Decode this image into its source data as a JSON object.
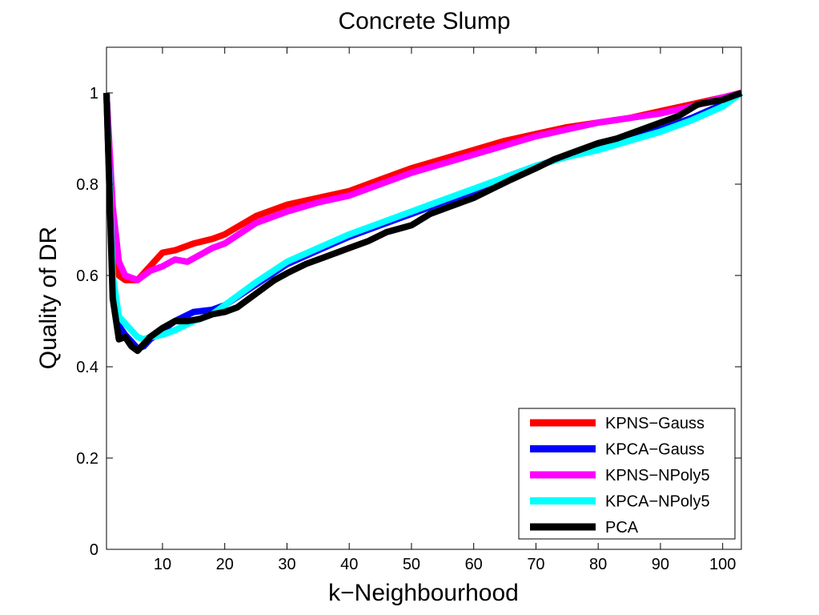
{
  "chart_data": {
    "type": "line",
    "title": "Concrete Slump",
    "xlabel": "k−Neighbourhood",
    "ylabel": "Quality of DR",
    "xlim": [
      1,
      103
    ],
    "ylim": [
      0,
      1.1
    ],
    "xticks": [
      10,
      20,
      30,
      40,
      50,
      60,
      70,
      80,
      90,
      100
    ],
    "yticks": [
      0,
      0.2,
      0.4,
      0.6,
      0.8,
      1
    ],
    "ytick_labels": [
      "0",
      "0.2",
      "0.4",
      "0.6",
      "0.8",
      "1"
    ],
    "grid": false,
    "legend_position": "bottom-right",
    "series": [
      {
        "name": "KPNS−Gauss",
        "color": "#ff0000",
        "x": [
          1,
          2,
          3,
          4,
          5,
          6,
          8,
          10,
          12,
          15,
          18,
          20,
          25,
          30,
          35,
          40,
          45,
          50,
          55,
          60,
          65,
          70,
          75,
          80,
          85,
          90,
          95,
          100,
          103
        ],
        "y": [
          1.0,
          0.72,
          0.6,
          0.59,
          0.59,
          0.59,
          0.62,
          0.65,
          0.655,
          0.67,
          0.68,
          0.69,
          0.73,
          0.755,
          0.77,
          0.785,
          0.81,
          0.835,
          0.855,
          0.875,
          0.895,
          0.91,
          0.925,
          0.935,
          0.945,
          0.96,
          0.975,
          0.99,
          1.0
        ]
      },
      {
        "name": "KPCA−Gauss",
        "color": "#0000ff",
        "x": [
          1,
          2,
          3,
          4,
          5,
          6,
          7,
          8,
          10,
          12,
          15,
          18,
          20,
          25,
          30,
          35,
          40,
          45,
          50,
          55,
          60,
          65,
          70,
          75,
          80,
          85,
          90,
          95,
          100,
          103
        ],
        "y": [
          1.0,
          0.58,
          0.49,
          0.47,
          0.455,
          0.44,
          0.445,
          0.46,
          0.48,
          0.5,
          0.52,
          0.525,
          0.535,
          0.58,
          0.625,
          0.655,
          0.685,
          0.71,
          0.735,
          0.76,
          0.785,
          0.815,
          0.84,
          0.86,
          0.88,
          0.9,
          0.92,
          0.945,
          0.975,
          1.0
        ]
      },
      {
        "name": "KPNS−NPoly5",
        "color": "#ff00ff",
        "x": [
          1,
          2,
          3,
          4,
          5,
          6,
          8,
          10,
          12,
          14,
          16,
          18,
          20,
          25,
          30,
          35,
          40,
          45,
          50,
          55,
          60,
          65,
          70,
          75,
          80,
          85,
          90,
          95,
          100,
          103
        ],
        "y": [
          1.0,
          0.75,
          0.63,
          0.6,
          0.595,
          0.59,
          0.61,
          0.62,
          0.635,
          0.63,
          0.645,
          0.66,
          0.67,
          0.715,
          0.74,
          0.76,
          0.775,
          0.8,
          0.825,
          0.845,
          0.865,
          0.885,
          0.905,
          0.92,
          0.935,
          0.945,
          0.955,
          0.97,
          0.99,
          1.0
        ]
      },
      {
        "name": "KPCA−NPoly5",
        "color": "#00ffff",
        "x": [
          1,
          2,
          3,
          4,
          5,
          6,
          7,
          8,
          10,
          12,
          15,
          18,
          20,
          25,
          30,
          35,
          40,
          45,
          50,
          55,
          60,
          65,
          70,
          75,
          80,
          85,
          90,
          95,
          100,
          103
        ],
        "y": [
          1.0,
          0.6,
          0.51,
          0.495,
          0.48,
          0.465,
          0.46,
          0.465,
          0.47,
          0.48,
          0.5,
          0.515,
          0.535,
          0.585,
          0.63,
          0.66,
          0.69,
          0.715,
          0.74,
          0.765,
          0.79,
          0.815,
          0.84,
          0.86,
          0.875,
          0.895,
          0.915,
          0.94,
          0.97,
          1.0
        ]
      },
      {
        "name": "PCA",
        "color": "#000000",
        "x": [
          1,
          2,
          3,
          4,
          5,
          6,
          7,
          8,
          10,
          12,
          14,
          16,
          18,
          20,
          22,
          25,
          28,
          30,
          33,
          36,
          40,
          43,
          46,
          50,
          53,
          56,
          60,
          63,
          66,
          70,
          73,
          76,
          80,
          83,
          86,
          90,
          93,
          96,
          100,
          103
        ],
        "y": [
          1.0,
          0.55,
          0.46,
          0.465,
          0.445,
          0.435,
          0.45,
          0.465,
          0.485,
          0.5,
          0.5,
          0.505,
          0.515,
          0.52,
          0.53,
          0.56,
          0.59,
          0.605,
          0.625,
          0.64,
          0.66,
          0.675,
          0.695,
          0.71,
          0.735,
          0.75,
          0.77,
          0.79,
          0.81,
          0.835,
          0.855,
          0.87,
          0.89,
          0.9,
          0.915,
          0.935,
          0.95,
          0.975,
          0.985,
          1.0
        ]
      }
    ]
  }
}
